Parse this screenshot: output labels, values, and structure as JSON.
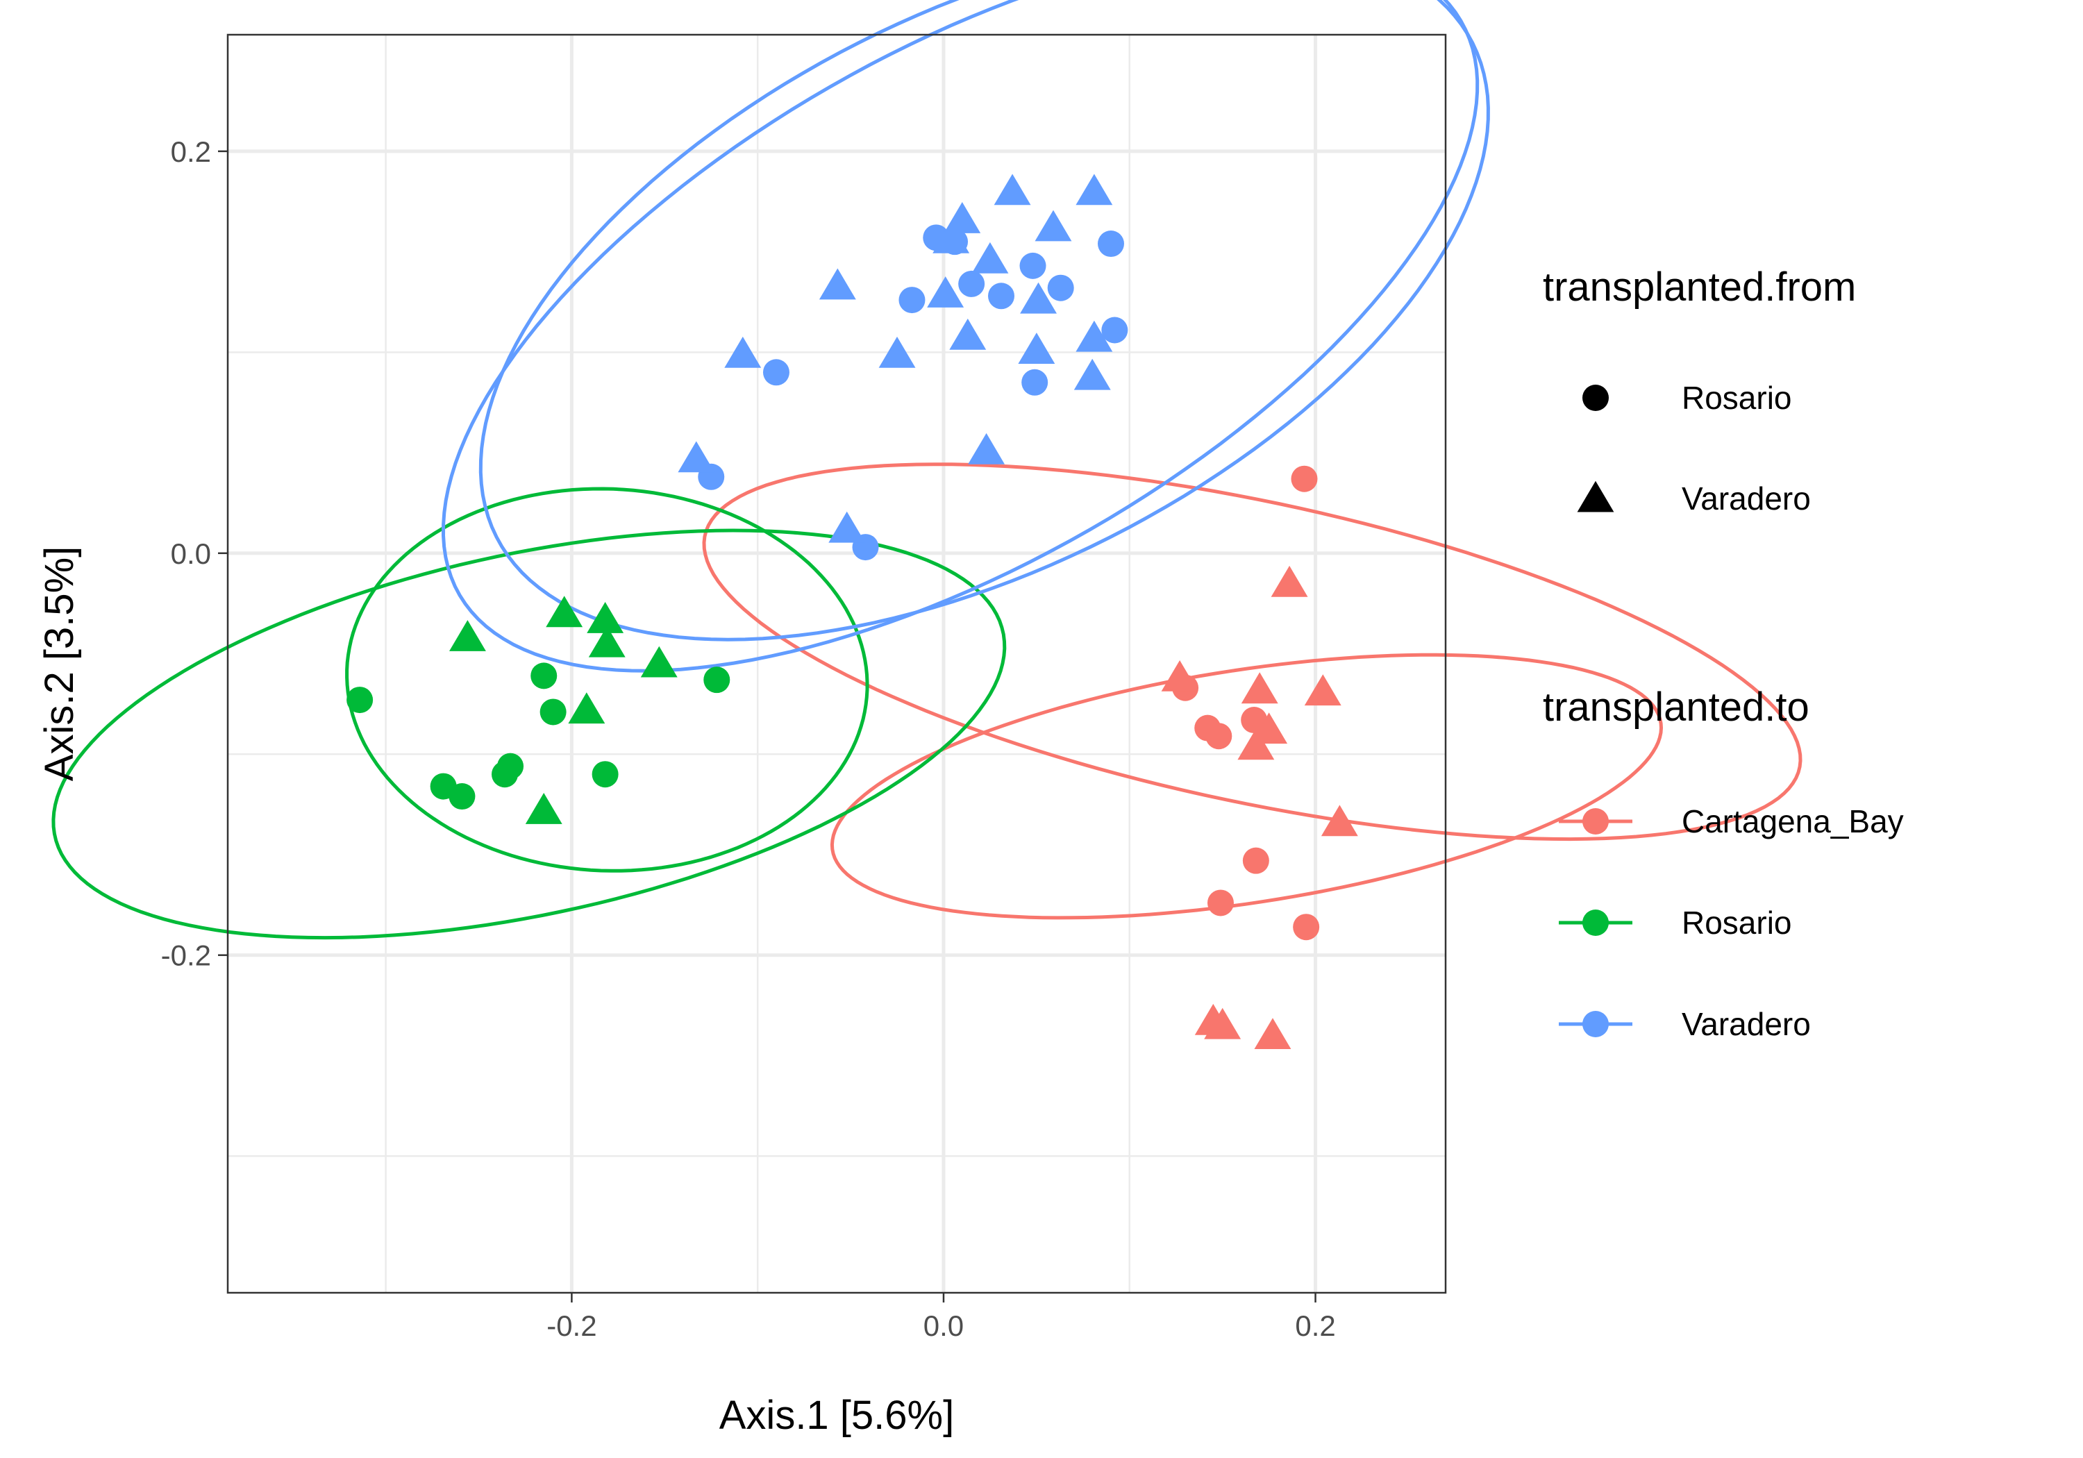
{
  "chart_data": {
    "type": "scatter",
    "xlabel": "Axis.1   [5.6%]",
    "ylabel": "Axis.2   [3.5%]",
    "xlim": [
      -0.385,
      0.27
    ],
    "ylim": [
      -0.368,
      0.258
    ],
    "x_ticks": [
      -0.2,
      0.0,
      0.2
    ],
    "x_tick_labels": [
      "-0.2",
      "0.0",
      "0.2"
    ],
    "y_ticks": [
      -0.2,
      0.0,
      0.2
    ],
    "y_tick_labels": [
      "-0.2",
      "0.0",
      "0.2"
    ],
    "grid": true,
    "legend_position": "right",
    "shape_legend": {
      "title": "transplanted.from",
      "items": [
        {
          "label": "Rosario",
          "shape": "circle"
        },
        {
          "label": "Varadero",
          "shape": "triangle"
        }
      ]
    },
    "color_legend": {
      "title": "transplanted.to",
      "items": [
        {
          "label": "Cartagena_Bay",
          "color": "#F8766D"
        },
        {
          "label": "Rosario",
          "color": "#00BA38"
        },
        {
          "label": "Varadero",
          "color": "#619CFF"
        }
      ]
    },
    "series": [
      {
        "to": "Cartagena_Bay",
        "from": "Rosario",
        "color": "#F8766D",
        "shape": "circle",
        "x": [
          0.194,
          0.13,
          0.142,
          0.148,
          0.167,
          0.168,
          0.149,
          0.195
        ],
        "y": [
          0.037,
          -0.067,
          -0.087,
          -0.091,
          -0.083,
          -0.153,
          -0.174,
          -0.186
        ]
      },
      {
        "to": "Cartagena_Bay",
        "from": "Varadero",
        "color": "#F8766D",
        "shape": "triangle",
        "x": [
          0.186,
          0.127,
          0.17,
          0.204,
          0.175,
          0.168,
          0.213,
          0.145,
          0.15,
          0.177
        ],
        "y": [
          -0.015,
          -0.062,
          -0.068,
          -0.069,
          -0.088,
          -0.096,
          -0.134,
          -0.233,
          -0.235,
          -0.24
        ]
      },
      {
        "to": "Rosario",
        "from": "Rosario",
        "color": "#00BA38",
        "shape": "circle",
        "x": [
          -0.314,
          -0.215,
          -0.122,
          -0.21,
          -0.269,
          -0.259,
          -0.233,
          -0.236,
          -0.182
        ],
        "y": [
          -0.073,
          -0.061,
          -0.063,
          -0.079,
          -0.116,
          -0.121,
          -0.106,
          -0.11,
          -0.11
        ]
      },
      {
        "to": "Rosario",
        "from": "Varadero",
        "color": "#00BA38",
        "shape": "triangle",
        "x": [
          -0.204,
          -0.182,
          -0.256,
          -0.181,
          -0.153,
          -0.192,
          -0.215
        ],
        "y": [
          -0.03,
          -0.033,
          -0.042,
          -0.045,
          -0.055,
          -0.078,
          -0.128
        ]
      },
      {
        "to": "Varadero",
        "from": "Rosario",
        "color": "#619CFF",
        "shape": "circle",
        "x": [
          -0.004,
          0.006,
          0.09,
          0.048,
          0.015,
          -0.017,
          0.031,
          0.063,
          0.092,
          -0.09,
          0.049,
          -0.125,
          -0.042
        ],
        "y": [
          0.157,
          0.155,
          0.154,
          0.143,
          0.134,
          0.126,
          0.128,
          0.132,
          0.111,
          0.09,
          0.085,
          0.038,
          0.003
        ]
      },
      {
        "to": "Varadero",
        "from": "Varadero",
        "color": "#619CFF",
        "shape": "triangle",
        "x": [
          0.037,
          0.081,
          0.01,
          0.059,
          0.004,
          0.025,
          -0.057,
          0.001,
          0.051,
          0.013,
          0.081,
          -0.108,
          -0.025,
          0.05,
          0.08,
          0.023,
          -0.133,
          -0.052
        ],
        "y": [
          0.18,
          0.18,
          0.166,
          0.162,
          0.156,
          0.146,
          0.133,
          0.129,
          0.126,
          0.108,
          0.107,
          0.099,
          0.099,
          0.101,
          0.088,
          0.051,
          0.047,
          0.012
        ]
      }
    ],
    "ellipses": [
      {
        "group": "Cartagena_Bay",
        "color": "#F8766D",
        "cx": 0.166,
        "cy": -0.049,
        "rx": 0.075,
        "ry": 0.3,
        "angle_deg": 79
      },
      {
        "group": "Cartagena_Bay",
        "color": "#F8766D",
        "cx": 0.163,
        "cy": -0.116,
        "rx": 0.058,
        "ry": 0.225,
        "angle_deg": 98
      },
      {
        "group": "Rosario",
        "color": "#00BA38",
        "cx": -0.181,
        "cy": -0.063,
        "rx": 0.095,
        "ry": 0.14,
        "angle_deg": 88
      },
      {
        "group": "Rosario",
        "color": "#00BA38",
        "cx": -0.223,
        "cy": -0.09,
        "rx": 0.26,
        "ry": 0.09,
        "angle_deg": 11
      },
      {
        "group": "Varadero",
        "color": "#619CFF",
        "cx": 0.009,
        "cy": 0.122,
        "rx": 0.305,
        "ry": 0.13,
        "angle_deg": 27
      },
      {
        "group": "Varadero",
        "color": "#619CFF",
        "cx": 0.022,
        "cy": 0.131,
        "rx": 0.29,
        "ry": 0.14,
        "angle_deg": 24
      }
    ]
  }
}
